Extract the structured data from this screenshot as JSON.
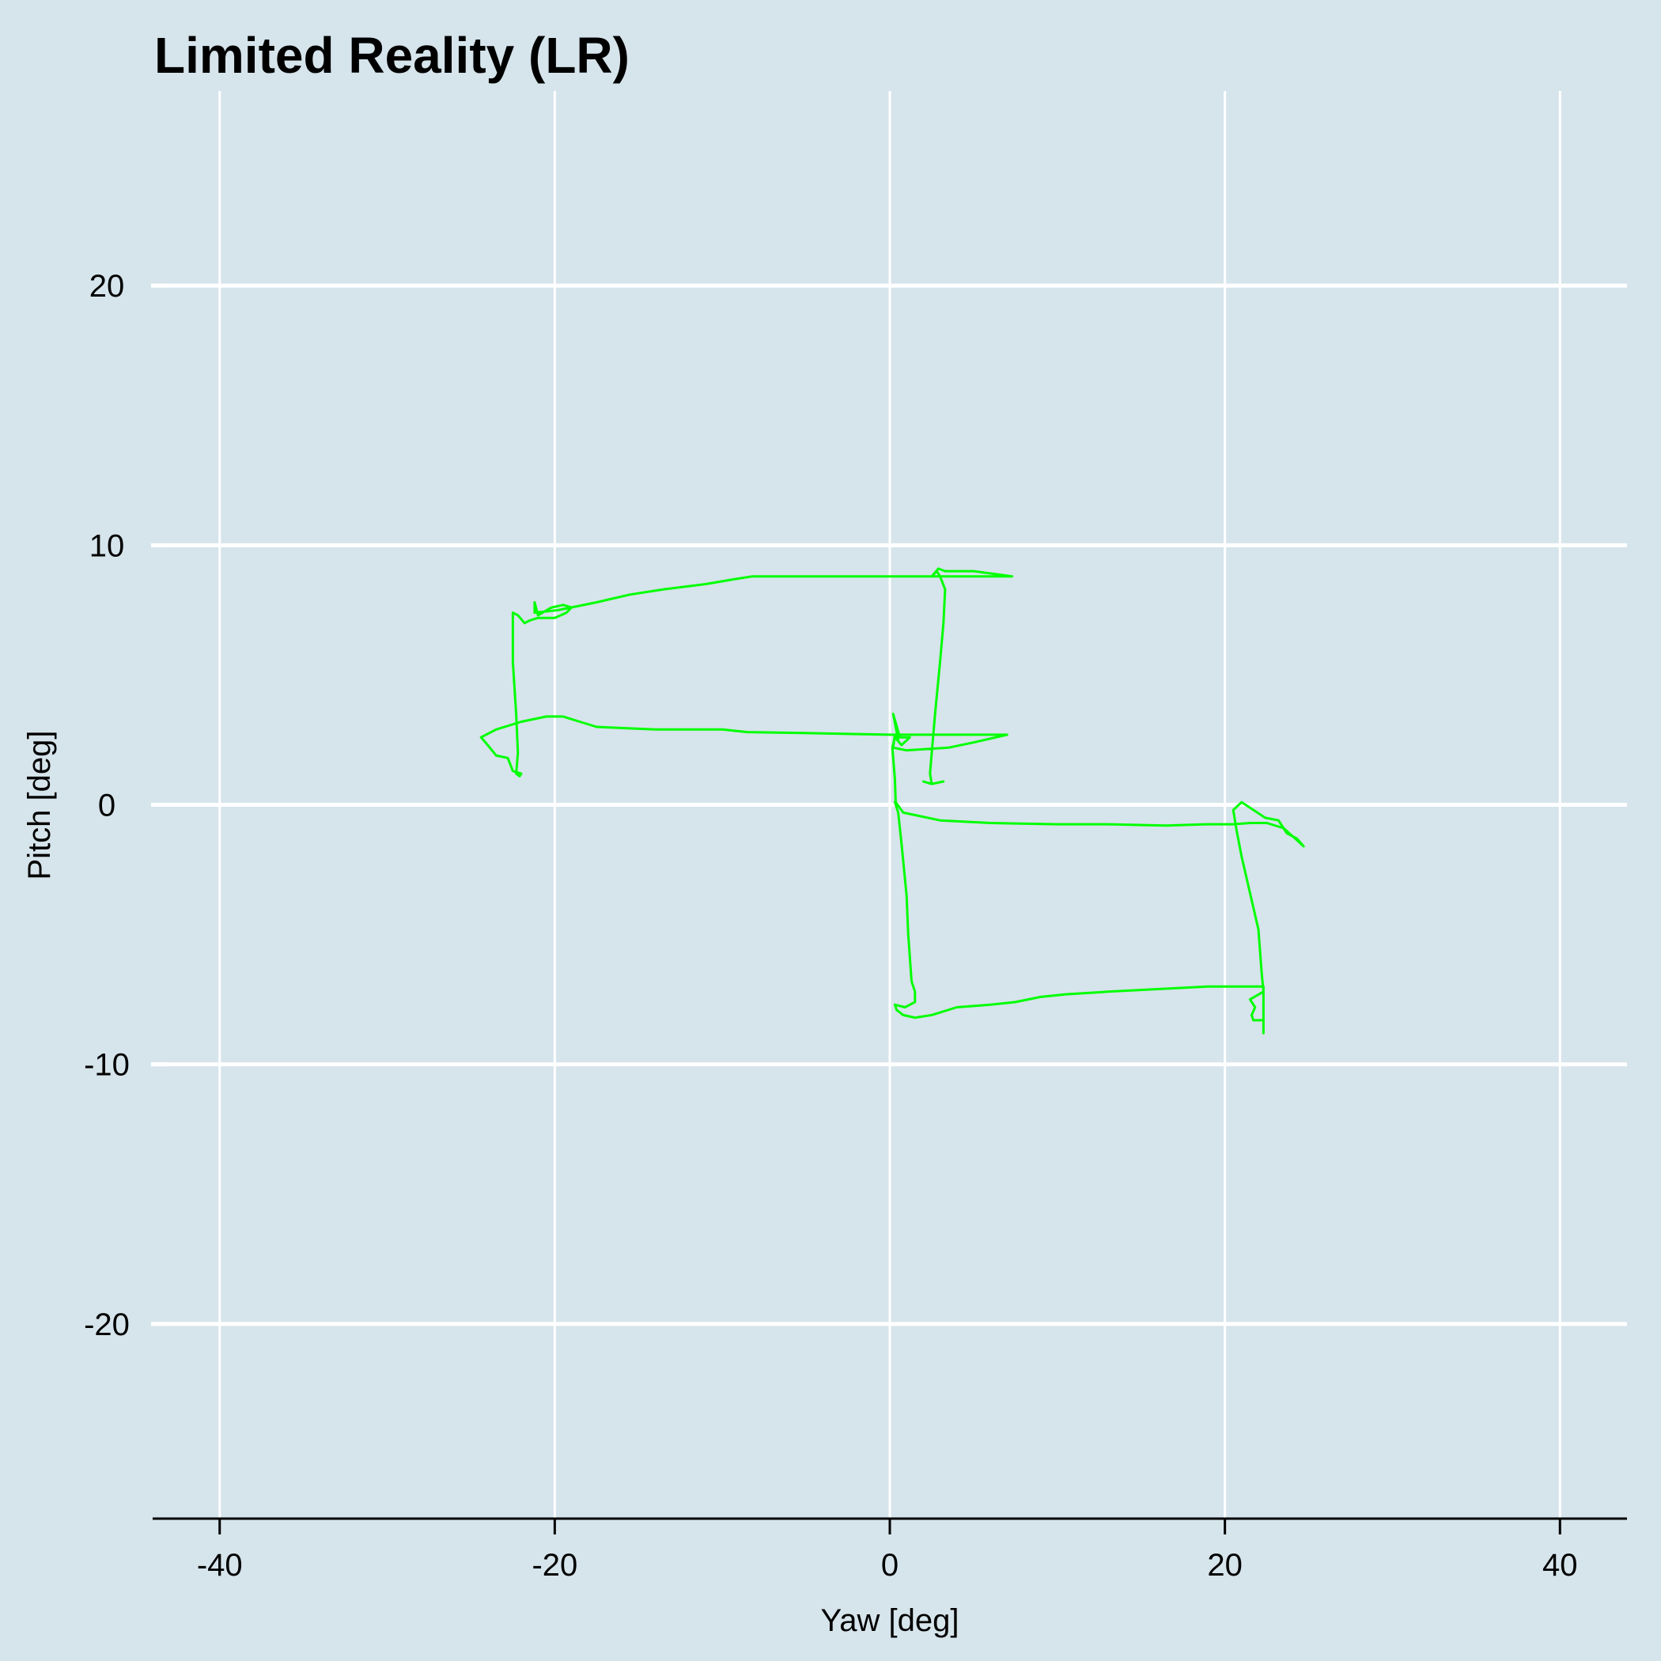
{
  "chart_data": {
    "type": "line",
    "title": "Limited Reality (LR)",
    "xlabel": "Yaw [deg]",
    "ylabel": "Pitch [deg]",
    "xlim": [
      -44,
      44
    ],
    "ylim": [
      -27.5,
      27.5
    ],
    "x_ticks": [
      -40,
      -20,
      0,
      20,
      40
    ],
    "x_tick_labels": [
      "-40",
      "-20",
      "0",
      "20",
      "40"
    ],
    "y_ticks": [
      -20,
      -10,
      0,
      10,
      20
    ],
    "y_tick_labels": [
      "-20",
      "-10",
      "0",
      "10",
      "20"
    ],
    "grid": true,
    "series": [
      {
        "color": "#00ff00",
        "points": [
          [
            2.0,
            0.9
          ],
          [
            2.5,
            0.8
          ],
          [
            3.2,
            0.9
          ],
          [
            2.5,
            0.8
          ],
          [
            2.4,
            1.2
          ],
          [
            2.5,
            2.0
          ],
          [
            2.7,
            3.5
          ],
          [
            3.0,
            5.5
          ],
          [
            3.2,
            7.0
          ],
          [
            3.3,
            8.3
          ],
          [
            3.0,
            8.8
          ],
          [
            2.8,
            9.0
          ],
          [
            2.5,
            8.8
          ],
          [
            2.9,
            9.1
          ],
          [
            3.3,
            9.0
          ],
          [
            5.0,
            9.0
          ],
          [
            7.3,
            8.8
          ],
          [
            4.0,
            8.8
          ],
          [
            -2.0,
            8.8
          ],
          [
            -8.2,
            8.8
          ],
          [
            -9.2,
            8.7
          ],
          [
            -11.0,
            8.5
          ],
          [
            -13.5,
            8.3
          ],
          [
            -15.5,
            8.1
          ],
          [
            -17.5,
            7.8
          ],
          [
            -19.8,
            7.5
          ],
          [
            -21.2,
            7.4
          ],
          [
            -21.2,
            7.8
          ],
          [
            -21.0,
            7.3
          ],
          [
            -20.2,
            7.6
          ],
          [
            -19.5,
            7.7
          ],
          [
            -19.0,
            7.6
          ],
          [
            -19.3,
            7.4
          ],
          [
            -20.0,
            7.2
          ],
          [
            -21.0,
            7.2
          ],
          [
            -21.5,
            7.1
          ],
          [
            -21.8,
            7.0
          ],
          [
            -22.2,
            7.3
          ],
          [
            -22.5,
            7.4
          ],
          [
            -22.5,
            6.8
          ],
          [
            -22.5,
            5.5
          ],
          [
            -22.3,
            3.5
          ],
          [
            -22.2,
            2.0
          ],
          [
            -22.3,
            1.2
          ],
          [
            -22.1,
            1.1
          ],
          [
            -22.0,
            1.2
          ],
          [
            -22.5,
            1.3
          ],
          [
            -22.8,
            1.8
          ],
          [
            -23.5,
            1.9
          ],
          [
            -24.0,
            2.3
          ],
          [
            -24.4,
            2.6
          ],
          [
            -23.5,
            2.9
          ],
          [
            -22.0,
            3.2
          ],
          [
            -20.5,
            3.4
          ],
          [
            -19.5,
            3.4
          ],
          [
            -18.5,
            3.2
          ],
          [
            -17.5,
            3.0
          ],
          [
            -14.0,
            2.9
          ],
          [
            -10.0,
            2.9
          ],
          [
            -8.5,
            2.8
          ],
          [
            -4.0,
            2.75
          ],
          [
            0.0,
            2.7
          ],
          [
            4.0,
            2.7
          ],
          [
            7.0,
            2.7
          ],
          [
            5.0,
            2.4
          ],
          [
            3.5,
            2.2
          ],
          [
            1.0,
            2.1
          ],
          [
            0.2,
            2.2
          ],
          [
            0.3,
            2.7
          ],
          [
            0.5,
            2.5
          ],
          [
            0.2,
            3.5
          ],
          [
            0.6,
            2.6
          ],
          [
            1.2,
            2.6
          ],
          [
            0.7,
            2.3
          ],
          [
            0.3,
            2.6
          ],
          [
            0.15,
            2.2
          ],
          [
            0.3,
            1.0
          ],
          [
            0.35,
            0.1
          ],
          [
            0.8,
            -0.3
          ],
          [
            3.0,
            -0.6
          ],
          [
            6.0,
            -0.7
          ],
          [
            10.0,
            -0.75
          ],
          [
            13.0,
            -0.75
          ],
          [
            16.5,
            -0.8
          ],
          [
            19.0,
            -0.75
          ],
          [
            20.5,
            -0.75
          ],
          [
            21.5,
            -0.7
          ],
          [
            22.5,
            -0.7
          ],
          [
            23.5,
            -0.9
          ],
          [
            24.2,
            -1.3
          ],
          [
            24.7,
            -1.6
          ],
          [
            24.3,
            -1.3
          ],
          [
            23.7,
            -1.1
          ],
          [
            23.2,
            -0.6
          ],
          [
            22.4,
            -0.5
          ],
          [
            21.0,
            0.1
          ],
          [
            20.5,
            -0.2
          ],
          [
            20.7,
            -1.0
          ],
          [
            21.0,
            -2.0
          ],
          [
            21.5,
            -3.4
          ],
          [
            22.0,
            -4.8
          ],
          [
            22.2,
            -6.5
          ],
          [
            22.3,
            -7.2
          ],
          [
            21.5,
            -7.5
          ],
          [
            21.8,
            -7.8
          ],
          [
            21.6,
            -8.1
          ],
          [
            21.7,
            -8.3
          ],
          [
            22.3,
            -8.3
          ],
          [
            22.3,
            -8.8
          ],
          [
            22.3,
            -7.0
          ],
          [
            21.0,
            -7.0
          ],
          [
            19.0,
            -7.0
          ],
          [
            16.0,
            -7.1
          ],
          [
            13.0,
            -7.2
          ],
          [
            10.5,
            -7.3
          ],
          [
            9.0,
            -7.4
          ],
          [
            7.5,
            -7.6
          ],
          [
            6.0,
            -7.7
          ],
          [
            4.0,
            -7.8
          ],
          [
            2.5,
            -8.1
          ],
          [
            1.5,
            -8.2
          ],
          [
            0.8,
            -8.1
          ],
          [
            0.4,
            -7.9
          ],
          [
            0.3,
            -7.7
          ],
          [
            0.9,
            -7.8
          ],
          [
            1.5,
            -7.6
          ],
          [
            1.5,
            -7.2
          ],
          [
            1.3,
            -6.8
          ],
          [
            1.1,
            -5.0
          ],
          [
            1.0,
            -3.5
          ],
          [
            0.7,
            -1.5
          ],
          [
            0.5,
            -0.3
          ],
          [
            0.3,
            0.1
          ]
        ]
      }
    ]
  }
}
